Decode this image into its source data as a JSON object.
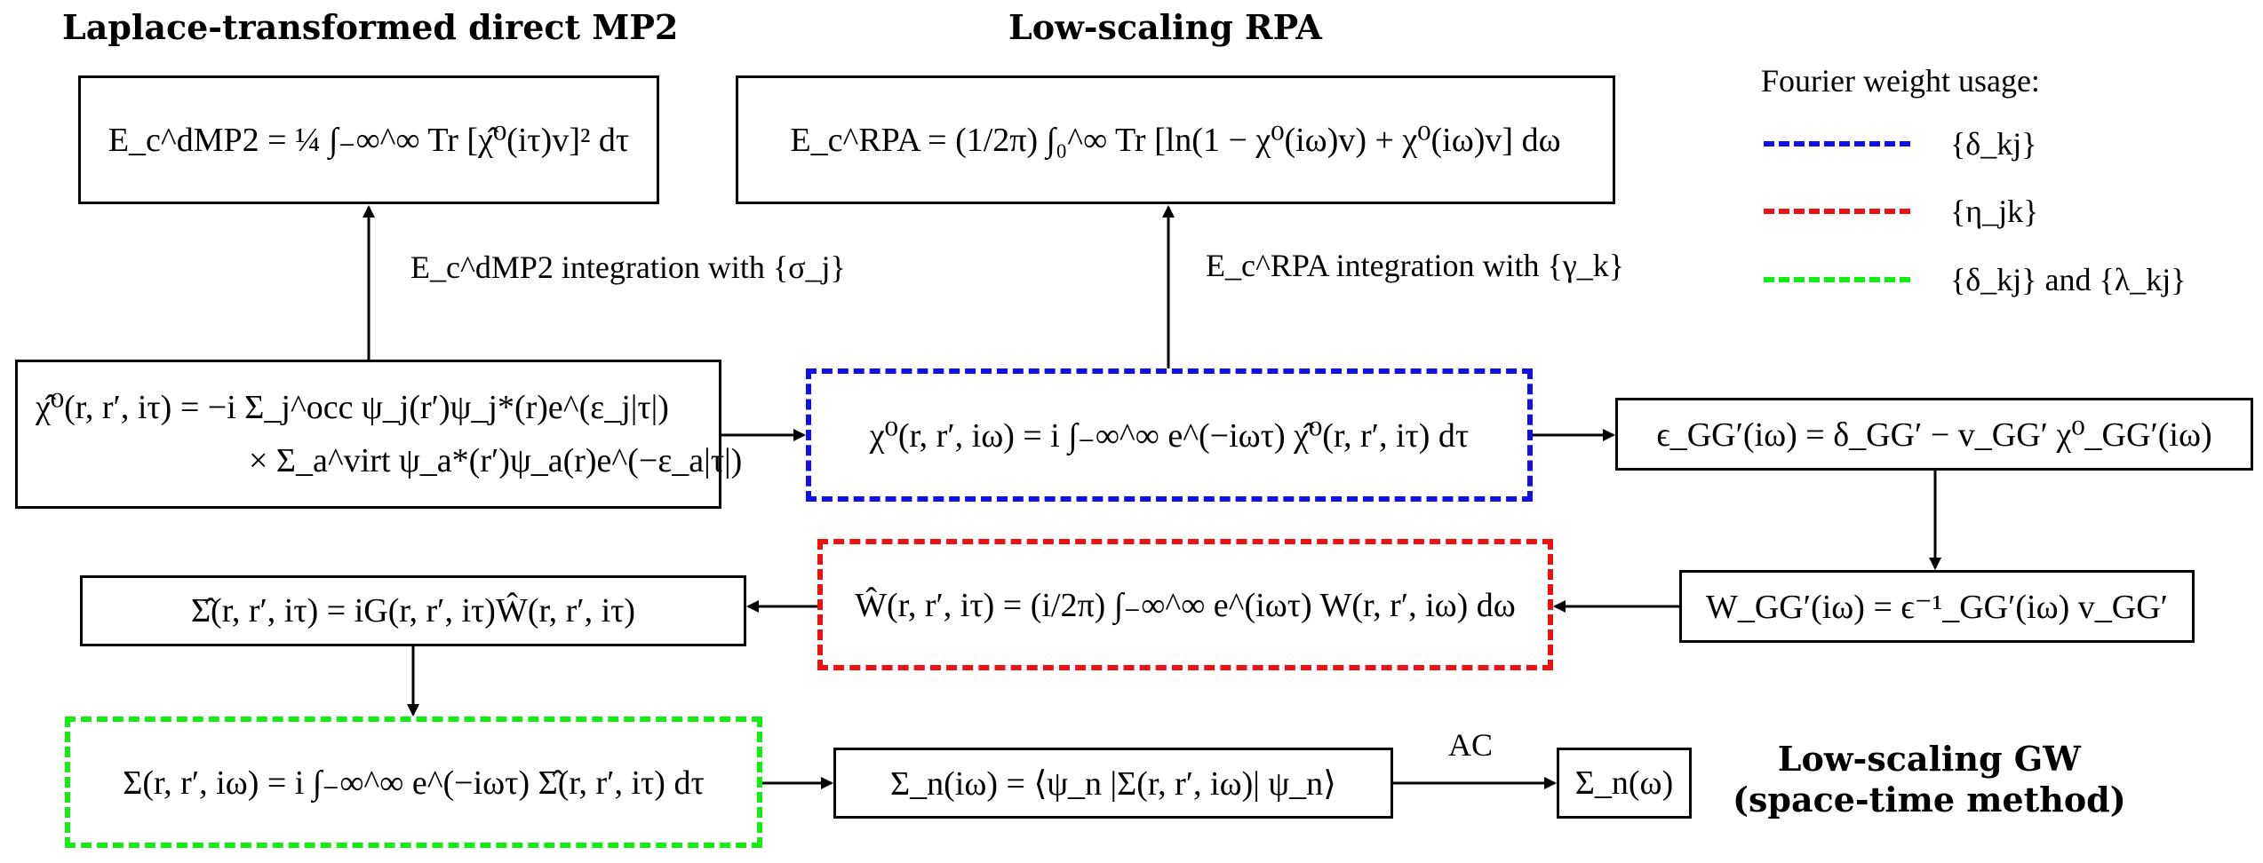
{
  "titles": {
    "mp2": "Laplace-transformed direct MP2",
    "rpa": "Low-scaling RPA",
    "gw_line1": "Low-scaling GW",
    "gw_line2": "(space-time method)"
  },
  "boxes": {
    "mp2_energy": "E_c^dMP2 = ¼ ∫₋∞^∞ Tr [χ̂⁰(iτ)v]² dτ",
    "rpa_energy": "E_c^RPA = (1/2π) ∫₀^∞ Tr [ln(1 − χ⁰(iω)v) + χ⁰(iω)v] dω",
    "chi_tau_line1": "χ̂⁰(r, r′, iτ) = −i Σ_j^occ ψ_j(r′)ψ_j*(r)e^(ε_j|τ|)",
    "chi_tau_line2": "× Σ_a^virt ψ_a*(r′)ψ_a(r)e^(−ε_a|τ|)",
    "chi_omega": "χ⁰(r, r′, iω) = i ∫₋∞^∞ e^(−iωτ) χ̂⁰(r, r′, iτ) dτ",
    "epsilon": "ϵ_GG′(iω) = δ_GG′ − v_GG′ χ⁰_GG′(iω)",
    "w_omega": "W_GG′(iω) = ϵ⁻¹_GG′(iω) v_GG′",
    "w_tau": "Ŵ(r, r′, iτ) = (i/2π) ∫₋∞^∞ e^(iωτ) W(r, r′, iω) dω",
    "sigma_tau": "Σ̂(r, r′, iτ) = iG(r, r′, iτ)Ŵ(r, r′, iτ)",
    "sigma_omega": "Σ(r, r′, iω) = i ∫₋∞^∞ e^(−iωτ) Σ̂(r, r′, iτ) dτ",
    "sigma_n_iomega": "Σ_n(iω) = ⟨ψ_n |Σ(r, r′, iω)| ψ_n⟩",
    "sigma_n_omega": "Σ_n(ω)"
  },
  "edge_labels": {
    "mp2_integration": "E_c^dMP2 integration with {σ_j}",
    "rpa_integration": "E_c^RPA integration with {γ_k}",
    "ac": "AC"
  },
  "legend": {
    "title": "Fourier weight usage:",
    "items": [
      {
        "text": "{δ_kj}",
        "color": "#1010ee"
      },
      {
        "text": "{η_jk}",
        "color": "#ee1111"
      },
      {
        "text": "{δ_kj} and {λ_kj}",
        "color": "#11ee11"
      }
    ]
  }
}
